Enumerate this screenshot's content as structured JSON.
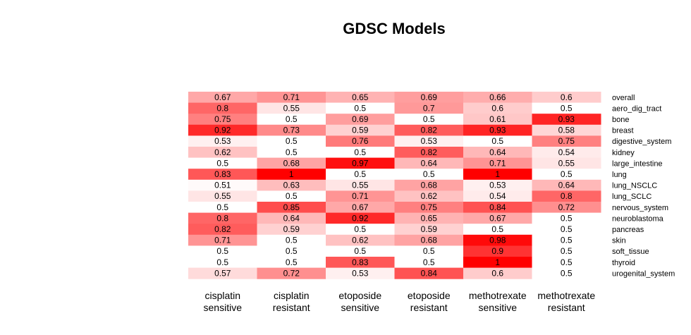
{
  "chart_data": {
    "type": "heatmap",
    "title": "GDSC Models",
    "columns": [
      {
        "line1": "cisplatin",
        "line2": "sensitive"
      },
      {
        "line1": "cisplatin",
        "line2": "resistant"
      },
      {
        "line1": "etoposide",
        "line2": "sensitive"
      },
      {
        "line1": "etoposide",
        "line2": "resistant"
      },
      {
        "line1": "methotrexate",
        "line2": "sensitive"
      },
      {
        "line1": "methotrexate",
        "line2": "resistant"
      }
    ],
    "rows": [
      "overall",
      "aero_dig_tract",
      "bone",
      "breast",
      "digestive_system",
      "kidney",
      "large_intestine",
      "lung",
      "lung_NSCLC",
      "lung_SCLC",
      "nervous_system",
      "neuroblastoma",
      "pancreas",
      "skin",
      "soft_tissue",
      "thyroid",
      "urogenital_system"
    ],
    "values": [
      [
        0.67,
        0.71,
        0.65,
        0.69,
        0.66,
        0.6
      ],
      [
        0.8,
        0.55,
        0.5,
        0.7,
        0.6,
        0.5
      ],
      [
        0.75,
        0.5,
        0.69,
        0.5,
        0.61,
        0.93
      ],
      [
        0.92,
        0.73,
        0.59,
        0.82,
        0.93,
        0.58
      ],
      [
        0.53,
        0.5,
        0.76,
        0.53,
        0.5,
        0.75
      ],
      [
        0.62,
        0.5,
        0.5,
        0.82,
        0.64,
        0.54
      ],
      [
        0.5,
        0.68,
        0.97,
        0.64,
        0.71,
        0.55
      ],
      [
        0.83,
        1,
        0.5,
        0.5,
        1,
        0.5
      ],
      [
        0.51,
        0.63,
        0.55,
        0.68,
        0.53,
        0.64
      ],
      [
        0.55,
        0.5,
        0.71,
        0.62,
        0.54,
        0.8
      ],
      [
        0.5,
        0.85,
        0.67,
        0.75,
        0.84,
        0.72
      ],
      [
        0.8,
        0.64,
        0.92,
        0.65,
        0.67,
        0.5
      ],
      [
        0.82,
        0.59,
        0.5,
        0.59,
        0.5,
        0.5
      ],
      [
        0.71,
        0.5,
        0.62,
        0.68,
        0.98,
        0.5
      ],
      [
        0.5,
        0.5,
        0.5,
        0.5,
        0.9,
        0.5
      ],
      [
        0.5,
        0.5,
        0.83,
        0.5,
        1,
        0.5
      ],
      [
        0.57,
        0.72,
        0.53,
        0.84,
        0.6,
        0.5
      ]
    ],
    "color_low": "#ffffff",
    "color_high": "#ff0000",
    "value_range": [
      0.5,
      1
    ]
  }
}
